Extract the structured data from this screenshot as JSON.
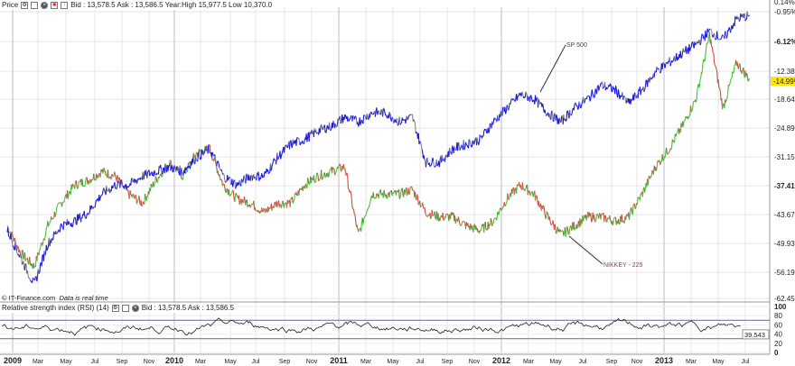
{
  "price_header": {
    "title": "Price",
    "quote": "Bid : 13,578.5 Ask : 13,586.5 Year:High 15,977.5 Low 10,370.0"
  },
  "rsi_header": {
    "title": "Relative strength index (RSI) (14)",
    "quote": "Bid : 13,578.5 Ask : 13,586.5"
  },
  "footer": {
    "source": "© IT-Finance.com",
    "realtime": "Data is real time"
  },
  "colors": {
    "sp500": "#1a1adc",
    "up": "#3cc83c",
    "down": "#d24646",
    "band": "#7070e0",
    "highlight": "#ffe800"
  },
  "chart_data": {
    "type": "line",
    "y_ticks": [
      "0.14%",
      "-0.95%",
      "-6.12%",
      "-12.38%",
      "-18.64%",
      "-24.89%",
      "-31.15%",
      "-37.41%",
      "-43.67%",
      "-49.93%",
      "-56.19%",
      "-62.45%"
    ],
    "ylim": [
      -62.45,
      0.14
    ],
    "current_label": "-14.99%",
    "x_ticks": [
      "2009",
      "Mar",
      "May",
      "Jul",
      "Sep",
      "Nov",
      "2010",
      "Mar",
      "May",
      "Jul",
      "Sep",
      "Nov",
      "2011",
      "Mar",
      "May",
      "Jul",
      "Sep",
      "Nov",
      "2012",
      "Mar",
      "May",
      "Jul",
      "Sep",
      "Nov",
      "2013",
      "Mar",
      "May",
      "Jul"
    ],
    "series": [
      {
        "name": "SP 500",
        "values": [
          -47.4,
          -53.3,
          -59.1,
          -50.3,
          -46.4,
          -45.4,
          -43.5,
          -39.6,
          -37.6,
          -37.6,
          -35.7,
          -34.7,
          -33.7,
          -34.7,
          -31.7,
          -29.8,
          -35.7,
          -37.6,
          -35.7,
          -35.7,
          -31.7,
          -28.8,
          -27.8,
          -25.9,
          -24.9,
          -23.0,
          -24.0,
          -22.0,
          -22.0,
          -24.0,
          -23.0,
          -32.7,
          -32.7,
          -29.8,
          -28.8,
          -27.8,
          -24.0,
          -21.0,
          -18.1,
          -19.0,
          -22.0,
          -24.0,
          -21.0,
          -19.0,
          -16.1,
          -17.1,
          -20.0,
          -17.1,
          -13.2,
          -11.2,
          -9.2,
          -7.3,
          -4.4,
          -6.3,
          -1.8,
          -1.0
        ]
      },
      {
        "name": "NIKKEY - 225",
        "values": [
          -46.4,
          -52.3,
          -55.2,
          -46.4,
          -41.5,
          -37.6,
          -36.6,
          -34.7,
          -35.7,
          -39.6,
          -41.5,
          -36.6,
          -32.7,
          -35.7,
          -30.8,
          -29.8,
          -37.6,
          -40.6,
          -41.5,
          -43.5,
          -41.5,
          -41.5,
          -37.6,
          -35.7,
          -34.7,
          -33.7,
          -48.4,
          -39.6,
          -39.6,
          -39.6,
          -38.6,
          -43.5,
          -44.5,
          -44.5,
          -46.4,
          -47.4,
          -45.4,
          -40.6,
          -37.6,
          -39.6,
          -44.5,
          -48.4,
          -46.4,
          -44.5,
          -44.5,
          -45.4,
          -44.5,
          -39.6,
          -33.7,
          -29.8,
          -24.9,
          -19.0,
          -5.3,
          -21.0,
          -11.2,
          -15.0
        ]
      }
    ],
    "rsi": {
      "ticks": [
        "100",
        "80",
        "60",
        "40",
        "20",
        "0"
      ],
      "bands": [
        70,
        30
      ],
      "current": "39.543"
    }
  }
}
